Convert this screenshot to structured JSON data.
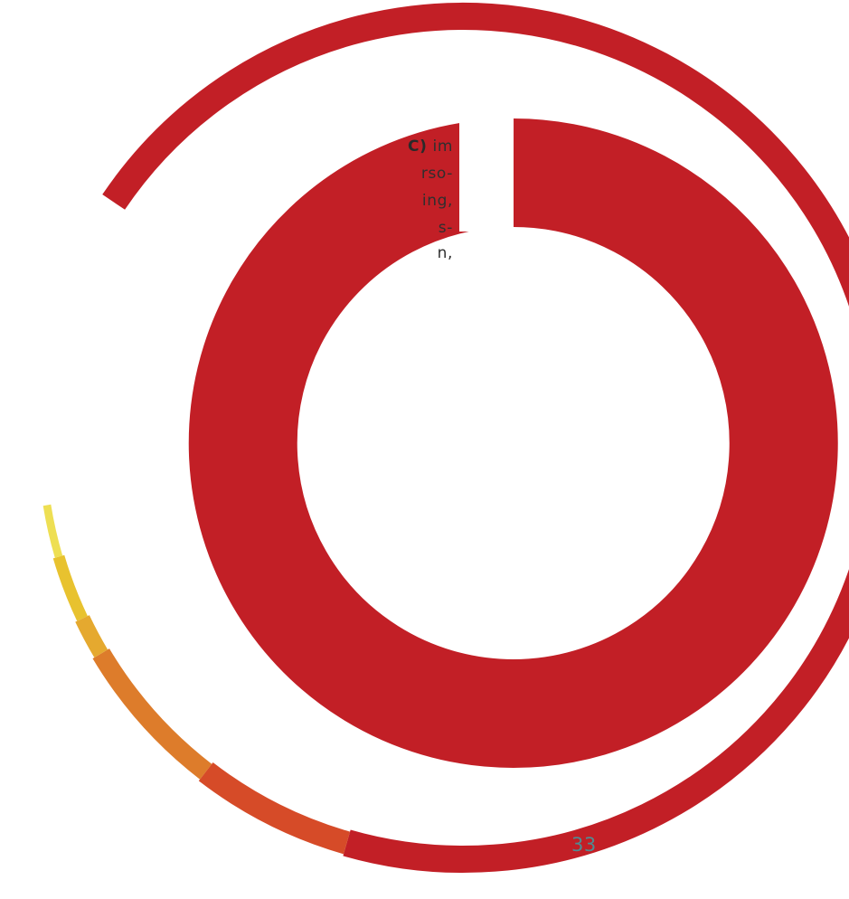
{
  "text_fragments": {
    "line1_bold": "C)",
    "line1_rest": " im",
    "line2": "rso-",
    "line3": "ing,",
    "line4": "s-",
    "line5": "n,"
  },
  "page_number": "33",
  "colors": {
    "background": "#ffffff",
    "red": "#c21f26",
    "orange_red": "#d64b28",
    "orange": "#dd7c2b",
    "amber": "#e5a92f",
    "yellow": "#e8c22f",
    "light_yellow": "#eedf53",
    "page_number": "#4f8c93"
  },
  "rings": [
    {
      "name": "outer-ring",
      "segments": [
        {
          "name": "outer-ring-red",
          "color": "#c21f26",
          "fraction": 0.7
        },
        {
          "name": "outer-ring-orange-red",
          "color": "#d64b28",
          "fraction": 0.06
        },
        {
          "name": "outer-ring-orange",
          "color": "#dd7c2b",
          "fraction": 0.06
        },
        {
          "name": "outer-ring-amber",
          "color": "#e5a92f",
          "fraction": 0.015
        },
        {
          "name": "outer-ring-yellow",
          "color": "#e8c22f",
          "fraction": 0.025
        },
        {
          "name": "outer-ring-light-yellow",
          "color": "#eedf53",
          "fraction": 0.02
        }
      ]
    },
    {
      "name": "inner-ring",
      "segments": [
        {
          "name": "inner-ring-red",
          "color": "#c21f26",
          "fraction": 1.0
        }
      ]
    }
  ]
}
